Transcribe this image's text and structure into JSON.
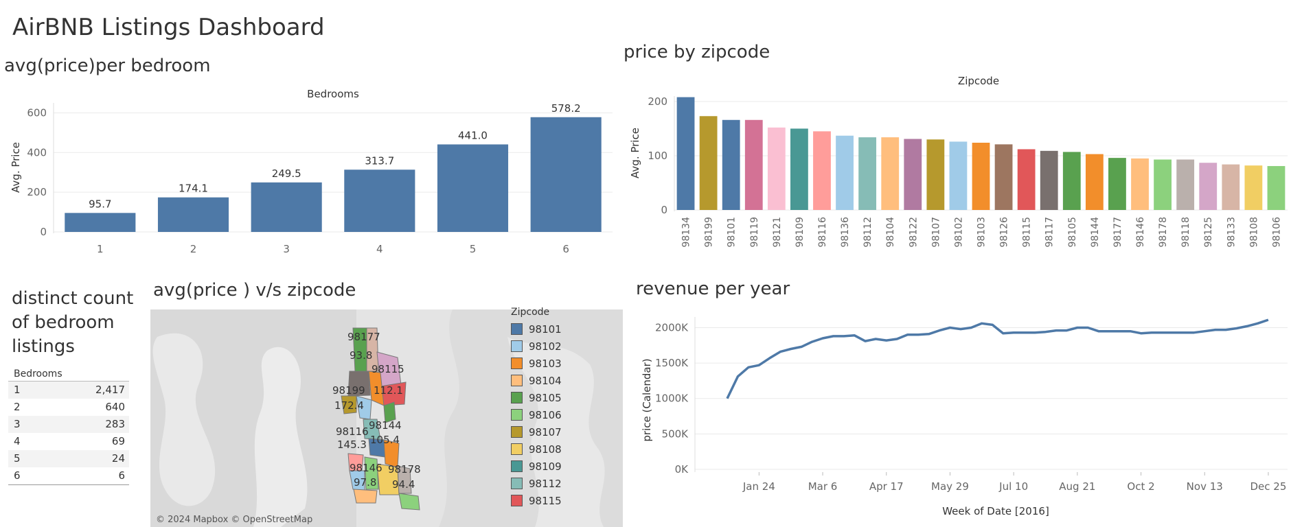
{
  "dashboard": {
    "title": "AirBNB Listings Dashboard"
  },
  "bedroom_chart": {
    "title": "avg(price)per bedroom"
  },
  "zip_chart": {
    "title": "price by zipcode"
  },
  "count_table": {
    "title_lines": [
      "distinct count",
      "of bedroom",
      "listings"
    ],
    "header": "Bedrooms",
    "rows": [
      {
        "bedrooms": "1",
        "count": "2,417"
      },
      {
        "bedrooms": "2",
        "count": "640"
      },
      {
        "bedrooms": "3",
        "count": "283"
      },
      {
        "bedrooms": "4",
        "count": "69"
      },
      {
        "bedrooms": "5",
        "count": "24"
      },
      {
        "bedrooms": "6",
        "count": "6"
      }
    ]
  },
  "map_panel": {
    "title": "avg(price ) v/s zipcode",
    "attribution": "© 2024 Mapbox © OpenStreetMap",
    "map_labels": [
      "98177",
      "93.8",
      "98115",
      "98199",
      "112.1",
      "172.4",
      "98144",
      "98116",
      "105.4",
      "145.3",
      "98146",
      "98178",
      "97.8",
      "94.4"
    ],
    "legend_title": "Zipcode",
    "legend": [
      {
        "zip": "98101",
        "color": "#4e79a7"
      },
      {
        "zip": "98102",
        "color": "#a0cbe8"
      },
      {
        "zip": "98103",
        "color": "#f28e2b"
      },
      {
        "zip": "98104",
        "color": "#ffbe7d"
      },
      {
        "zip": "98105",
        "color": "#59a14f"
      },
      {
        "zip": "98106",
        "color": "#8cd17d"
      },
      {
        "zip": "98107",
        "color": "#b6992d"
      },
      {
        "zip": "98108",
        "color": "#f1ce63"
      },
      {
        "zip": "98109",
        "color": "#499894"
      },
      {
        "zip": "98112",
        "color": "#86bcb6"
      },
      {
        "zip": "98115",
        "color": "#e15759"
      }
    ]
  },
  "revenue_panel": {
    "title": "revenue per year"
  },
  "chart_data": [
    {
      "type": "bar",
      "title": "avg(price)per bedroom",
      "xlabel": "Bedrooms",
      "ylabel": "Avg. Price",
      "categories": [
        "1",
        "2",
        "3",
        "4",
        "5",
        "6"
      ],
      "values": [
        95.7,
        174.1,
        249.5,
        313.7,
        441.0,
        578.2
      ],
      "data_labels": [
        "95.7",
        "174.1",
        "249.5",
        "313.7",
        "441.0",
        "578.2"
      ],
      "yticks": [
        "0",
        "200",
        "400",
        "600"
      ],
      "ylim": [
        0,
        650
      ],
      "color": "#4e79a7"
    },
    {
      "type": "bar",
      "title": "price by zipcode",
      "xlabel": "Zipcode",
      "ylabel": "Avg. Price",
      "categories": [
        "98134",
        "98199",
        "98101",
        "98119",
        "98121",
        "98109",
        "98116",
        "98136",
        "98112",
        "98104",
        "98122",
        "98107",
        "98102",
        "98103",
        "98126",
        "98115",
        "98117",
        "98105",
        "98144",
        "98177",
        "98146",
        "98178",
        "98118",
        "98125",
        "98133",
        "98108",
        "98106"
      ],
      "values": [
        208,
        173,
        166,
        166,
        152,
        150,
        145,
        137,
        134,
        134,
        131,
        130,
        126,
        124,
        121,
        112,
        109,
        107,
        103,
        96,
        95,
        93,
        93,
        87,
        84,
        82,
        81
      ],
      "colors": [
        "#4e79a7",
        "#b6992d",
        "#4e79a7",
        "#d37295",
        "#fabfd2",
        "#499894",
        "#ff9d9a",
        "#a0cbe8",
        "#86bcb6",
        "#ffbe7d",
        "#b07aa1",
        "#b6992d",
        "#a0cbe8",
        "#f28e2b",
        "#9d7660",
        "#e15759",
        "#79706e",
        "#59a14f",
        "#f28e2b",
        "#59a14f",
        "#ffbe7d",
        "#8cd17d",
        "#bab0ac",
        "#d4a6c8",
        "#d7b5a6",
        "#f1ce63",
        "#8cd17d"
      ],
      "yticks": [
        "0",
        "100",
        "200"
      ],
      "ylim": [
        0,
        210
      ]
    },
    {
      "type": "line",
      "title": "revenue per year",
      "xlabel": "Week of Date [2016]",
      "ylabel": "price (Calendar)",
      "xticks": [
        "Jan 24",
        "Mar 6",
        "Apr 17",
        "May 29",
        "Jul 10",
        "Aug 21",
        "Oct 2",
        "Nov 13",
        "Dec 25"
      ],
      "yticks": [
        "0K",
        "500K",
        "1000K",
        "1500K",
        "2000K"
      ],
      "ylim": [
        0,
        2150000
      ],
      "x_weeks": [
        "Jan 3",
        "Jan 10",
        "Jan 17",
        "Jan 24",
        "Jan 31",
        "Feb 7",
        "Feb 14",
        "Feb 21",
        "Feb 28",
        "Mar 6",
        "Mar 13",
        "Mar 20",
        "Mar 27",
        "Apr 3",
        "Apr 10",
        "Apr 17",
        "Apr 24",
        "May 1",
        "May 8",
        "May 15",
        "May 22",
        "May 29",
        "Jun 5",
        "Jun 12",
        "Jun 19",
        "Jun 26",
        "Jul 3",
        "Jul 10",
        "Jul 17",
        "Jul 24",
        "Jul 31",
        "Aug 7",
        "Aug 14",
        "Aug 21",
        "Aug 28",
        "Sep 4",
        "Sep 11",
        "Sep 18",
        "Sep 25",
        "Oct 2",
        "Oct 9",
        "Oct 16",
        "Oct 23",
        "Oct 30",
        "Nov 6",
        "Nov 13",
        "Nov 20",
        "Nov 27",
        "Dec 4",
        "Dec 11",
        "Dec 18",
        "Dec 25"
      ],
      "values": [
        1000000,
        1310000,
        1440000,
        1470000,
        1570000,
        1660000,
        1700000,
        1730000,
        1800000,
        1850000,
        1880000,
        1880000,
        1890000,
        1810000,
        1840000,
        1820000,
        1840000,
        1900000,
        1900000,
        1910000,
        1960000,
        2000000,
        1980000,
        2000000,
        2060000,
        2040000,
        1920000,
        1930000,
        1930000,
        1930000,
        1940000,
        1960000,
        1960000,
        2000000,
        2000000,
        1950000,
        1950000,
        1950000,
        1950000,
        1920000,
        1930000,
        1930000,
        1930000,
        1930000,
        1930000,
        1950000,
        1970000,
        1970000,
        1990000,
        2020000,
        2060000,
        2110000
      ]
    }
  ]
}
